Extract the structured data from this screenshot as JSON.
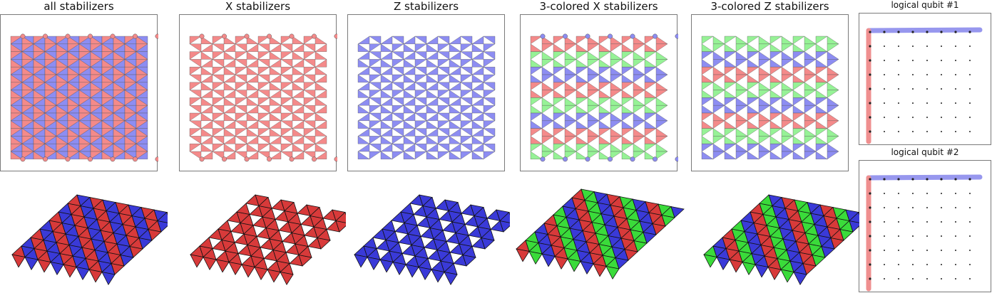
{
  "figure": {
    "panels": [
      {
        "id": "all",
        "title": "all stabilizers",
        "palette": [
          "#f48a8a",
          "#8d8df2"
        ]
      },
      {
        "id": "x",
        "title": "X stabilizers",
        "palette": [
          "#f48a8a"
        ]
      },
      {
        "id": "z",
        "title": "Z stabilizers",
        "palette": [
          "#8d8df2"
        ]
      },
      {
        "id": "x3",
        "title": "3-colored X stabilizers",
        "palette": [
          "#f48a8a",
          "#96f296",
          "#8d8df2"
        ]
      },
      {
        "id": "z3",
        "title": "3-colored Z stabilizers",
        "palette": [
          "#96f296",
          "#8d8df2",
          "#f48a8a"
        ]
      }
    ],
    "logical": [
      {
        "id": "lq1",
        "title": "logical qubit #1"
      },
      {
        "id": "lq2",
        "title": "logical qubit #2"
      }
    ],
    "colors": {
      "red_face": "#f48a8a",
      "blue_face": "#8d8df2",
      "green_face": "#96f296",
      "red_3d": "#d83a3a",
      "blue_3d": "#3a3ad8",
      "green_3d": "#3adb3a",
      "red_path": "#ef8f8f",
      "blue_path": "#9797ee",
      "frame": "#7a7a7a"
    }
  }
}
